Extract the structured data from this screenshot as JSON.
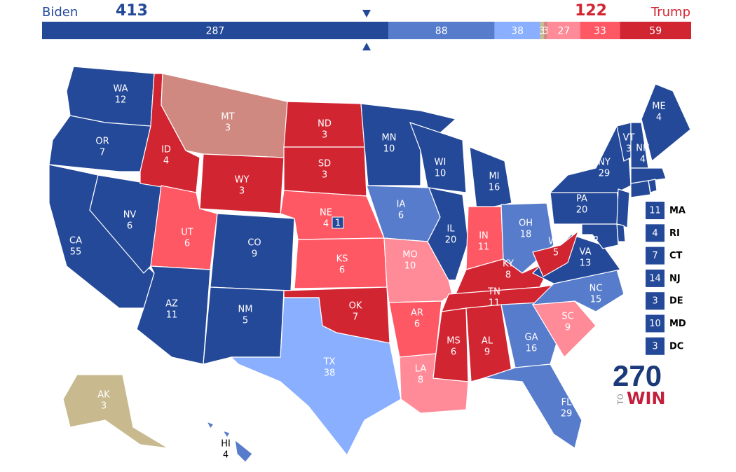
{
  "header": {
    "left_name": "Biden",
    "left_total": 413,
    "right_name": "Trump",
    "right_total": 122
  },
  "bar": {
    "segments": [
      {
        "value": 287,
        "color": "#244999"
      },
      {
        "value": 88,
        "color": "#577ccc"
      },
      {
        "value": 38,
        "color": "#8aafff"
      },
      {
        "value": 3,
        "color": "#c8ba8e"
      },
      {
        "value": 3,
        "color": "#cf8980"
      },
      {
        "value": 27,
        "color": "#ff8b98"
      },
      {
        "value": 33,
        "color": "#ff5865"
      },
      {
        "value": 59,
        "color": "#d22532"
      }
    ]
  },
  "states": [
    {
      "label": "WA",
      "votes": 12,
      "color": "#244999"
    },
    {
      "label": "OR",
      "votes": 7,
      "color": "#244999"
    },
    {
      "label": "CA",
      "votes": 55,
      "color": "#244999"
    },
    {
      "label": "NV",
      "votes": 6,
      "color": "#244999"
    },
    {
      "label": "ID",
      "votes": 4,
      "color": "#d22532"
    },
    {
      "label": "MT",
      "votes": 3,
      "color": "#cf8980"
    },
    {
      "label": "WY",
      "votes": 3,
      "color": "#d22532"
    },
    {
      "label": "UT",
      "votes": 6,
      "color": "#ff5865"
    },
    {
      "label": "CO",
      "votes": 9,
      "color": "#244999"
    },
    {
      "label": "AZ",
      "votes": 11,
      "color": "#244999"
    },
    {
      "label": "NM",
      "votes": 5,
      "color": "#244999"
    },
    {
      "label": "ND",
      "votes": 3,
      "color": "#d22532"
    },
    {
      "label": "SD",
      "votes": 3,
      "color": "#d22532"
    },
    {
      "label": "NE",
      "votes": 4,
      "color": "#ff5865"
    },
    {
      "label": "KS",
      "votes": 6,
      "color": "#ff5865"
    },
    {
      "label": "OK",
      "votes": 7,
      "color": "#d22532"
    },
    {
      "label": "TX",
      "votes": 38,
      "color": "#8aafff"
    },
    {
      "label": "MN",
      "votes": 10,
      "color": "#244999"
    },
    {
      "label": "IA",
      "votes": 6,
      "color": "#577ccc"
    },
    {
      "label": "MO",
      "votes": 10,
      "color": "#ff8b98"
    },
    {
      "label": "AR",
      "votes": 6,
      "color": "#ff5865"
    },
    {
      "label": "LA",
      "votes": 8,
      "color": "#ff8b98"
    },
    {
      "label": "WI",
      "votes": 10,
      "color": "#244999"
    },
    {
      "label": "IL",
      "votes": 20,
      "color": "#244999"
    },
    {
      "label": "MI",
      "votes": 16,
      "color": "#244999"
    },
    {
      "label": "IN",
      "votes": 11,
      "color": "#ff5865"
    },
    {
      "label": "OH",
      "votes": 18,
      "color": "#577ccc"
    },
    {
      "label": "KY",
      "votes": 8,
      "color": "#d22532"
    },
    {
      "label": "TN",
      "votes": 11,
      "color": "#d22532"
    },
    {
      "label": "MS",
      "votes": 6,
      "color": "#d22532"
    },
    {
      "label": "AL",
      "votes": 9,
      "color": "#d22532"
    },
    {
      "label": "GA",
      "votes": 16,
      "color": "#577ccc"
    },
    {
      "label": "FL",
      "votes": 29,
      "color": "#577ccc"
    },
    {
      "label": "SC",
      "votes": 9,
      "color": "#ff8b98"
    },
    {
      "label": "NC",
      "votes": 15,
      "color": "#577ccc"
    },
    {
      "label": "VA",
      "votes": 13,
      "color": "#244999"
    },
    {
      "label": "WV",
      "votes": 5,
      "color": "#d22532"
    },
    {
      "label": "PA",
      "votes": 20,
      "color": "#244999"
    },
    {
      "label": "NY",
      "votes": 29,
      "color": "#244999"
    },
    {
      "label": "VT",
      "votes": 3,
      "color": "#244999"
    },
    {
      "label": "NH",
      "votes": 4,
      "color": "#244999"
    },
    {
      "label": "ME",
      "votes": 4,
      "color": "#244999"
    },
    {
      "label": "AK",
      "votes": 3,
      "color": "#c8ba8e"
    },
    {
      "label": "HI",
      "votes": 4,
      "color": "#577ccc"
    }
  ],
  "ne_district": {
    "votes": 1,
    "color": "#244999"
  },
  "side_boxes": [
    {
      "label": "MA",
      "votes": 11,
      "color": "#244999"
    },
    {
      "label": "RI",
      "votes": 4,
      "color": "#244999"
    },
    {
      "label": "CT",
      "votes": 7,
      "color": "#244999"
    },
    {
      "label": "NJ",
      "votes": 14,
      "color": "#244999"
    },
    {
      "label": "DE",
      "votes": 3,
      "color": "#244999"
    },
    {
      "label": "MD",
      "votes": 10,
      "color": "#244999"
    },
    {
      "label": "DC",
      "votes": 3,
      "color": "#244999"
    }
  ],
  "logo": {
    "number": "270",
    "to": "TO",
    "win": "WIN"
  }
}
